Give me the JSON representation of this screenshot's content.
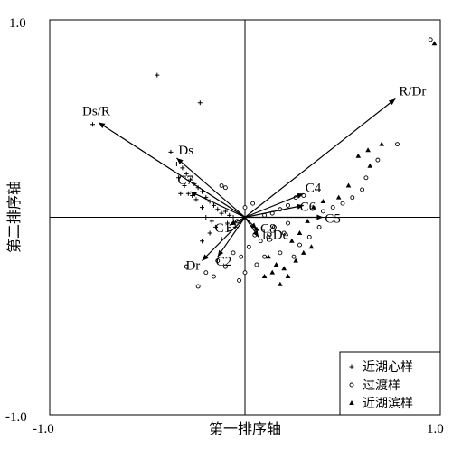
{
  "chart_data": {
    "type": "scatter",
    "subtype": "biplot",
    "title": "",
    "xlabel": "第一排序轴",
    "ylabel": "第二排序轴",
    "xlim": [
      -1.0,
      1.0
    ],
    "ylim": [
      -1.0,
      1.0
    ],
    "x_ticks": [
      "-1.0",
      "1.0"
    ],
    "y_ticks": [
      "1.0",
      "-1.0"
    ],
    "reference_lines": [
      0,
      0
    ],
    "legend_position": "bottom-right",
    "colors": {
      "stroke": "#000000",
      "background": "#ffffff"
    },
    "series": [
      {
        "name": "近湖心样",
        "marker": "plus",
        "points": [
          [
            -0.45,
            0.72
          ],
          [
            -0.78,
            0.47
          ],
          [
            -0.23,
            0.58
          ],
          [
            -0.38,
            0.33
          ],
          [
            -0.35,
            0.27
          ],
          [
            -0.32,
            0.25
          ],
          [
            -0.3,
            0.22
          ],
          [
            -0.28,
            0.19
          ],
          [
            -0.26,
            0.17
          ],
          [
            -0.24,
            0.15
          ],
          [
            -0.22,
            0.13
          ],
          [
            -0.34,
            0.2
          ],
          [
            -0.31,
            0.16
          ],
          [
            -0.29,
            0.12
          ],
          [
            -0.2,
            0.1
          ],
          [
            -0.18,
            0.08
          ],
          [
            -0.25,
            0.09
          ],
          [
            -0.22,
            0.05
          ],
          [
            -0.16,
            0.06
          ],
          [
            -0.14,
            0.04
          ],
          [
            -0.12,
            0.02
          ],
          [
            -0.1,
            0.03
          ],
          [
            -0.08,
            0.01
          ],
          [
            -0.06,
            0.0
          ],
          [
            -0.2,
            0.0
          ],
          [
            -0.17,
            -0.02
          ],
          [
            -0.09,
            -0.03
          ],
          [
            -0.05,
            -0.05
          ],
          [
            -0.18,
            -0.08
          ],
          [
            -0.12,
            -0.11
          ],
          [
            -0.22,
            -0.12
          ],
          [
            -0.27,
            0.11
          ],
          [
            -0.33,
            0.12
          ],
          [
            -0.15,
            -0.05
          ]
        ]
      },
      {
        "name": "过渡样",
        "marker": "circle",
        "points": [
          [
            0.95,
            0.9
          ],
          [
            0.78,
            0.37
          ],
          [
            0.68,
            0.29
          ],
          [
            0.62,
            0.2
          ],
          [
            0.6,
            0.14
          ],
          [
            0.55,
            0.1
          ],
          [
            0.5,
            0.07
          ],
          [
            0.45,
            0.05
          ],
          [
            0.4,
            0.03
          ],
          [
            0.3,
            0.11
          ],
          [
            0.26,
            0.1
          ],
          [
            0.22,
            0.06
          ],
          [
            0.18,
            0.04
          ],
          [
            0.14,
            0.02
          ],
          [
            0.1,
            0.01
          ],
          [
            0.15,
            -0.05
          ],
          [
            0.2,
            -0.08
          ],
          [
            0.12,
            -0.1
          ],
          [
            0.08,
            -0.12
          ],
          [
            0.05,
            -0.09
          ],
          [
            0.02,
            -0.15
          ],
          [
            -0.02,
            -0.2
          ],
          [
            -0.06,
            -0.18
          ],
          [
            -0.1,
            -0.25
          ],
          [
            -0.14,
            -0.22
          ],
          [
            -0.2,
            -0.28
          ],
          [
            -0.24,
            -0.35
          ],
          [
            -0.08,
            -0.06
          ],
          [
            -0.04,
            -0.02
          ],
          [
            0.0,
            0.05
          ],
          [
            0.04,
            0.07
          ],
          [
            -0.12,
            0.16
          ],
          [
            -0.1,
            0.15
          ],
          [
            0.25,
            -0.2
          ],
          [
            0.18,
            -0.18
          ],
          [
            0.1,
            -0.2
          ],
          [
            0.06,
            -0.24
          ],
          [
            0.0,
            -0.28
          ],
          [
            -0.03,
            -0.32
          ],
          [
            0.28,
            -0.14
          ],
          [
            0.33,
            -0.1
          ],
          [
            0.38,
            -0.05
          ],
          [
            0.22,
            -0.03
          ],
          [
            -0.3,
            -0.25
          ],
          [
            -0.16,
            -0.3
          ]
        ]
      },
      {
        "name": "近湖滨样",
        "marker": "triangle",
        "points": [
          [
            0.97,
            0.88
          ],
          [
            0.63,
            0.34
          ],
          [
            0.58,
            0.31
          ],
          [
            0.7,
            0.37
          ],
          [
            0.64,
            0.26
          ],
          [
            0.53,
            0.16
          ],
          [
            0.48,
            0.1
          ],
          [
            0.4,
            0.08
          ],
          [
            0.35,
            0.05
          ],
          [
            0.32,
            -0.02
          ],
          [
            0.28,
            -0.08
          ],
          [
            0.24,
            -0.12
          ],
          [
            0.3,
            -0.18
          ],
          [
            0.26,
            -0.22
          ],
          [
            0.2,
            -0.26
          ],
          [
            0.16,
            -0.24
          ],
          [
            0.14,
            -0.28
          ],
          [
            0.1,
            -0.3
          ],
          [
            0.22,
            -0.3
          ],
          [
            0.18,
            -0.34
          ],
          [
            0.12,
            -0.2
          ],
          [
            0.34,
            -0.15
          ],
          [
            0.06,
            -0.06
          ]
        ]
      }
    ],
    "vectors": [
      {
        "label": "Ds/R",
        "x": -0.75,
        "y": 0.48
      },
      {
        "label": "Ds",
        "x": -0.35,
        "y": 0.3
      },
      {
        "label": "C7",
        "x": -0.28,
        "y": 0.13
      },
      {
        "label": "R/Dr",
        "x": 0.77,
        "y": 0.6
      },
      {
        "label": "C4",
        "x": 0.3,
        "y": 0.12
      },
      {
        "label": "C6",
        "x": 0.3,
        "y": 0.06
      },
      {
        "label": "C5",
        "x": 0.4,
        "y": 0.0
      },
      {
        "label": "C1",
        "x": -0.08,
        "y": -0.04
      },
      {
        "label": "C8",
        "x": 0.06,
        "y": -0.06
      },
      {
        "label": "lgDe",
        "x": 0.07,
        "y": -0.1
      },
      {
        "label": "Dr",
        "x": -0.22,
        "y": -0.22
      },
      {
        "label": "C2",
        "x": -0.14,
        "y": -0.2
      }
    ]
  }
}
